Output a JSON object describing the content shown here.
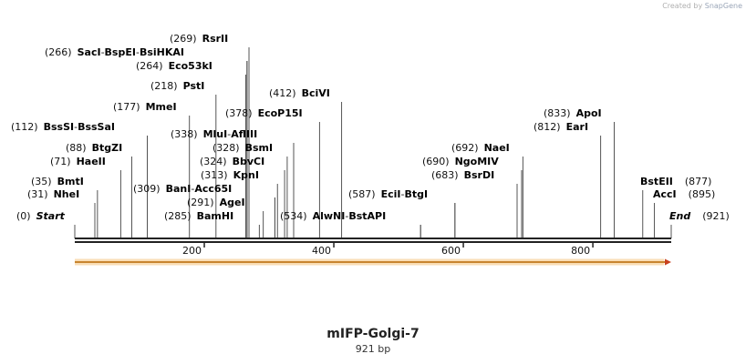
{
  "credit": {
    "prefix": "Created by",
    "brand": "SnapGene"
  },
  "sequence": {
    "name": "mIFP-Golgi-7",
    "length_label": "921 bp",
    "length": 921
  },
  "ticks": [
    200,
    400,
    600,
    800
  ],
  "colors": {
    "backbone": "#222222",
    "feature_fill": "#f6c27a",
    "feature_stroke": "#c88530",
    "arrow_head": "#c8401f",
    "label": "#000000",
    "position": "#111111"
  },
  "labels": [
    {
      "pos": "(0)",
      "parts": [
        {
          "t": "Start",
          "c": 0
        }
      ]
    },
    {
      "pos": "(31)",
      "parts": [
        {
          "t": "NheI",
          "c": 31
        }
      ]
    },
    {
      "pos": "(35)",
      "parts": [
        {
          "t": "BmtI",
          "c": 35
        }
      ]
    },
    {
      "pos": "(71)",
      "parts": [
        {
          "t": "HaeII",
          "c": 71
        }
      ]
    },
    {
      "pos": "(88)",
      "parts": [
        {
          "t": "BtgZI",
          "c": 88
        }
      ]
    },
    {
      "pos": "(112)",
      "parts": [
        {
          "t": "BssSI",
          "c": 112
        },
        {
          "t": "BssSaI",
          "c": 112
        }
      ]
    },
    {
      "pos": "(177)",
      "parts": [
        {
          "t": "MmeI",
          "c": 177
        }
      ]
    },
    {
      "pos": "(218)",
      "parts": [
        {
          "t": "PstI",
          "c": 218
        }
      ]
    },
    {
      "pos": "(264)",
      "parts": [
        {
          "t": "Eco53kI",
          "c": 264
        }
      ]
    },
    {
      "pos": "(266)",
      "parts": [
        {
          "t": "SacI",
          "c": 266
        },
        {
          "t": "BspEI",
          "c": 266
        },
        {
          "t": "BsiHKAI",
          "c": 266
        }
      ]
    },
    {
      "pos": "(269)",
      "parts": [
        {
          "t": "RsrII",
          "c": 269
        }
      ]
    },
    {
      "pos": "(285)",
      "parts": [
        {
          "t": "BamHI",
          "c": 285
        }
      ]
    },
    {
      "pos": "(291)",
      "parts": [
        {
          "t": "AgeI",
          "c": 291
        }
      ]
    },
    {
      "pos": "(309)",
      "parts": [
        {
          "t": "BanI",
          "c": 309
        },
        {
          "t": "Acc65I",
          "c": 309
        }
      ]
    },
    {
      "pos": "(313)",
      "parts": [
        {
          "t": "KpnI",
          "c": 313
        }
      ]
    },
    {
      "pos": "(324)",
      "parts": [
        {
          "t": "BbvCI",
          "c": 324
        }
      ]
    },
    {
      "pos": "(328)",
      "parts": [
        {
          "t": "BsmI",
          "c": 328
        }
      ]
    },
    {
      "pos": "(338)",
      "parts": [
        {
          "t": "MluI",
          "c": 338
        },
        {
          "t": "AflIII",
          "c": 338
        }
      ]
    },
    {
      "pos": "(378)",
      "parts": [
        {
          "t": "EcoP15I",
          "c": 378
        }
      ]
    },
    {
      "pos": "(412)",
      "parts": [
        {
          "t": "BciVI",
          "c": 412
        }
      ]
    },
    {
      "pos": "(534)",
      "parts": [
        {
          "t": "AlwNI",
          "c": 534
        },
        {
          "t": "BstAPI",
          "c": 534
        }
      ]
    },
    {
      "pos": "(587)",
      "parts": [
        {
          "t": "EciI",
          "c": 587
        },
        {
          "t": "BtgI",
          "c": 587
        }
      ]
    },
    {
      "pos": "(683)",
      "parts": [
        {
          "t": "BsrDI",
          "c": 683
        }
      ]
    },
    {
      "pos": "(690)",
      "parts": [
        {
          "t": "NgoMIV",
          "c": 690
        }
      ]
    },
    {
      "pos": "(692)",
      "parts": [
        {
          "t": "NaeI",
          "c": 692
        }
      ]
    },
    {
      "pos": "(812)",
      "parts": [
        {
          "t": "EarI",
          "c": 812
        }
      ]
    },
    {
      "pos": "(833)",
      "parts": [
        {
          "t": "ApoI",
          "c": 833
        }
      ]
    },
    {
      "pos": "(877)",
      "parts": [
        {
          "t": "BstEII",
          "c": 877
        }
      ]
    },
    {
      "pos": "(895)",
      "parts": [
        {
          "t": "AccI",
          "c": 895
        }
      ]
    },
    {
      "pos": "(921)",
      "parts": [
        {
          "t": "End",
          "c": 921
        }
      ]
    }
  ],
  "feature": {
    "start": 1,
    "end": 921,
    "direction": "forward"
  }
}
